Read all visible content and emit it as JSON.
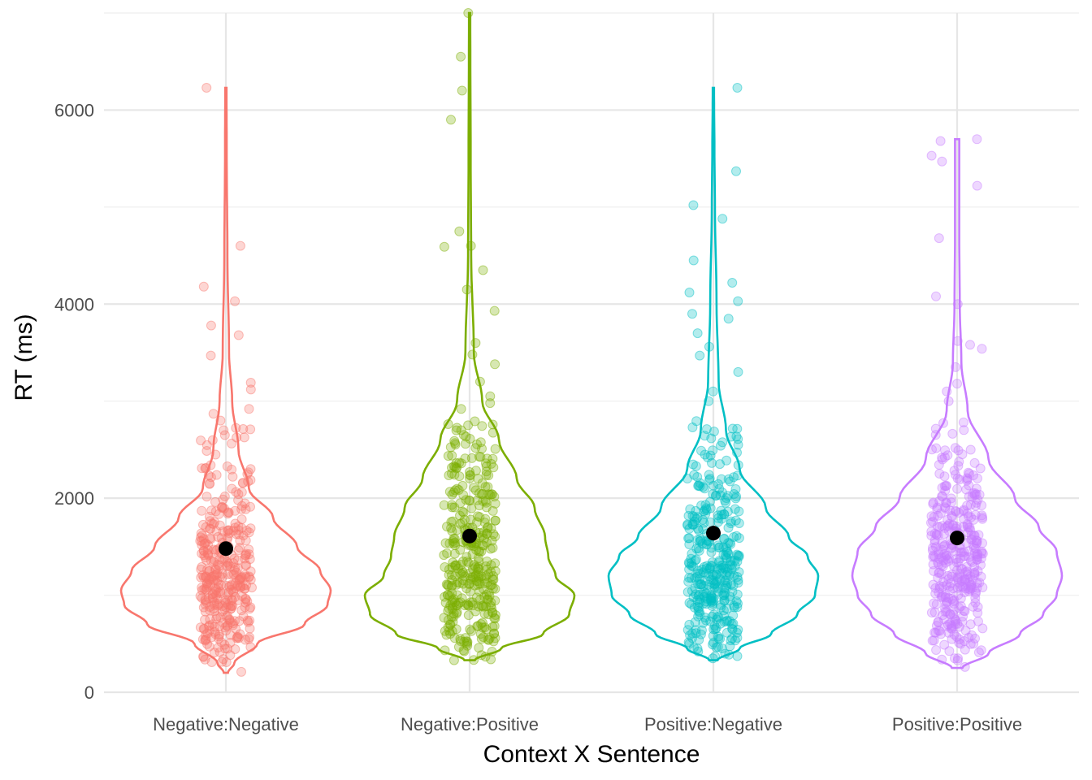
{
  "chart_data": {
    "type": "violin",
    "xlabel": "Context X Sentence",
    "ylabel": "RT (ms)",
    "ylim": [
      0,
      7000
    ],
    "yticks": [
      0,
      2000,
      4000,
      6000
    ],
    "ytick_labels": [
      "0",
      "2000",
      "4000",
      "6000"
    ],
    "grid": true,
    "legend": "none",
    "categories": [
      "Negative:Negative",
      "Negative:Positive",
      "Positive:Negative",
      "Positive:Positive"
    ],
    "series": [
      {
        "category": "Negative:Negative",
        "color": "#F8766D",
        "mean": 1480,
        "min": 200,
        "max": 6230,
        "outliers": [
          6230,
          4600,
          4180,
          4030,
          3780,
          3680,
          3470,
          3190,
          3120,
          2920,
          2870,
          2800,
          2700,
          2650,
          540,
          460,
          310,
          210
        ],
        "density_profile": [
          [
            200,
            0.02
          ],
          [
            300,
            0.08
          ],
          [
            500,
            0.3
          ],
          [
            700,
            0.75
          ],
          [
            900,
            0.97
          ],
          [
            1050,
            1.0
          ],
          [
            1250,
            0.9
          ],
          [
            1500,
            0.68
          ],
          [
            1800,
            0.45
          ],
          [
            2100,
            0.22
          ],
          [
            2500,
            0.12
          ],
          [
            3000,
            0.06
          ],
          [
            3500,
            0.03
          ],
          [
            4500,
            0.015
          ],
          [
            5500,
            0.008
          ],
          [
            6230,
            0.006
          ]
        ]
      },
      {
        "category": "Negative:Positive",
        "color": "#7CAE00",
        "mean": 1610,
        "min": 330,
        "max": 7000,
        "outliers": [
          7000,
          6550,
          6200,
          5900,
          4750,
          4600,
          4590,
          4350,
          4150,
          3930,
          3600,
          3480,
          3380,
          3200,
          3050,
          2980,
          2920,
          520,
          500,
          330
        ],
        "density_profile": [
          [
            330,
            0.05
          ],
          [
            450,
            0.3
          ],
          [
            600,
            0.7
          ],
          [
            800,
            0.95
          ],
          [
            1000,
            1.0
          ],
          [
            1200,
            0.82
          ],
          [
            1400,
            0.75
          ],
          [
            1600,
            0.72
          ],
          [
            1900,
            0.62
          ],
          [
            2200,
            0.45
          ],
          [
            2600,
            0.28
          ],
          [
            3000,
            0.12
          ],
          [
            3500,
            0.04
          ],
          [
            4500,
            0.015
          ],
          [
            5500,
            0.01
          ],
          [
            7000,
            0.006
          ]
        ]
      },
      {
        "category": "Positive:Negative",
        "color": "#00BFC4",
        "mean": 1640,
        "min": 330,
        "max": 6230,
        "outliers": [
          6230,
          5370,
          5020,
          4880,
          4450,
          4220,
          4120,
          4030,
          3900,
          3850,
          3700,
          3560,
          3470,
          3300,
          3100,
          3000,
          450,
          370
        ],
        "density_profile": [
          [
            330,
            0.04
          ],
          [
            450,
            0.25
          ],
          [
            600,
            0.55
          ],
          [
            800,
            0.8
          ],
          [
            1000,
            0.97
          ],
          [
            1200,
            1.0
          ],
          [
            1400,
            0.9
          ],
          [
            1600,
            0.72
          ],
          [
            1900,
            0.5
          ],
          [
            2300,
            0.25
          ],
          [
            2700,
            0.12
          ],
          [
            3200,
            0.05
          ],
          [
            4000,
            0.03
          ],
          [
            5000,
            0.015
          ],
          [
            5600,
            0.01
          ],
          [
            6230,
            0.006
          ]
        ]
      },
      {
        "category": "Positive:Positive",
        "color": "#C77CFF",
        "mean": 1590,
        "min": 250,
        "max": 5700,
        "outliers": [
          5700,
          5680,
          5530,
          5470,
          5220,
          4680,
          4080,
          4000,
          3620,
          3580,
          3540,
          3350,
          3180,
          3100,
          3000,
          350,
          260
        ],
        "density_profile": [
          [
            250,
            0.05
          ],
          [
            400,
            0.3
          ],
          [
            600,
            0.6
          ],
          [
            800,
            0.82
          ],
          [
            1000,
            0.95
          ],
          [
            1200,
            1.0
          ],
          [
            1450,
            0.95
          ],
          [
            1700,
            0.78
          ],
          [
            2000,
            0.55
          ],
          [
            2400,
            0.3
          ],
          [
            2900,
            0.1
          ],
          [
            3400,
            0.04
          ],
          [
            4000,
            0.025
          ],
          [
            4700,
            0.02
          ],
          [
            5200,
            0.02
          ],
          [
            5700,
            0.02
          ]
        ]
      }
    ]
  }
}
